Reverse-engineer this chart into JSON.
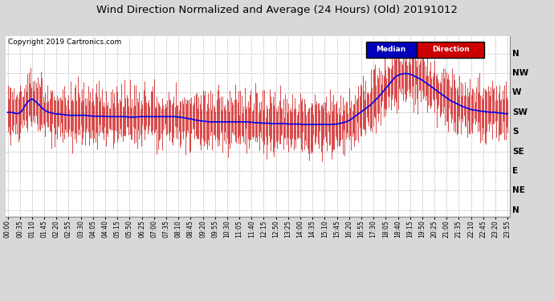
{
  "title": "Wind Direction Normalized and Average (24 Hours) (Old) 20191012",
  "copyright": "Copyright 2019 Cartronics.com",
  "background_color": "#d8d8d8",
  "plot_bg_color": "#ffffff",
  "grid_color": "#bbbbbb",
  "y_labels": [
    "N",
    "NW",
    "W",
    "SW",
    "S",
    "SE",
    "E",
    "NE",
    "N"
  ],
  "y_ticks": [
    360,
    315,
    270,
    225,
    180,
    135,
    90,
    45,
    0
  ],
  "y_lim": [
    -15,
    400
  ],
  "x_tick_labels": [
    "00:00",
    "00:35",
    "01:10",
    "01:45",
    "02:20",
    "02:55",
    "03:30",
    "04:05",
    "04:40",
    "05:15",
    "05:50",
    "06:25",
    "07:00",
    "07:35",
    "08:10",
    "08:45",
    "09:20",
    "09:55",
    "10:30",
    "11:05",
    "11:40",
    "12:15",
    "12:50",
    "13:25",
    "14:00",
    "14:35",
    "15:10",
    "15:45",
    "16:20",
    "16:55",
    "17:30",
    "18:05",
    "18:40",
    "19:15",
    "19:50",
    "20:25",
    "21:00",
    "21:35",
    "22:10",
    "22:45",
    "23:20",
    "23:55"
  ],
  "legend_median_bg": "#0000bb",
  "legend_direction_bg": "#cc0000",
  "legend_median_text": "Median",
  "legend_direction_text": "Direction",
  "median_line_color": "#0000ee",
  "bar_color": "#cc0000",
  "n_points": 480,
  "median_profile": [
    225,
    225,
    225,
    224,
    223,
    222,
    222,
    225,
    228,
    235,
    242,
    248,
    252,
    255,
    255,
    252,
    248,
    244,
    240,
    236,
    232,
    229,
    227,
    225,
    224,
    223,
    222,
    221,
    221,
    221,
    220,
    220,
    219,
    219,
    218,
    218,
    218,
    218,
    218,
    218,
    218,
    218,
    218,
    218,
    218,
    217,
    217,
    216,
    216,
    216,
    216,
    216,
    216,
    216,
    216,
    215,
    215,
    215,
    215,
    215,
    215,
    215,
    215,
    215,
    215,
    215,
    215,
    214,
    214,
    214,
    214,
    214,
    214,
    215,
    215,
    215,
    215,
    215,
    215,
    215,
    215,
    215,
    215,
    215,
    215,
    215,
    215,
    215,
    215,
    215,
    215,
    215,
    215,
    215,
    215,
    214,
    214,
    213,
    213,
    212,
    211,
    210,
    210,
    209,
    208,
    207,
    206,
    206,
    205,
    205,
    204,
    204,
    203,
    203,
    203,
    203,
    203,
    203,
    203,
    203,
    203,
    203,
    203,
    203,
    203,
    203,
    203,
    203,
    203,
    203,
    203,
    203,
    203,
    203,
    203,
    202,
    202,
    202,
    201,
    201,
    201,
    201,
    200,
    200,
    200,
    200,
    200,
    199,
    199,
    199,
    199,
    199,
    199,
    199,
    199,
    199,
    198,
    198,
    198,
    198,
    198,
    198,
    198,
    198,
    197,
    197,
    197,
    197,
    197,
    197,
    197,
    197,
    197,
    197,
    197,
    197,
    197,
    197,
    197,
    197,
    197,
    197,
    197,
    198,
    198,
    199,
    200,
    201,
    202,
    203,
    205,
    207,
    210,
    213,
    216,
    219,
    222,
    225,
    228,
    231,
    234,
    237,
    240,
    244,
    248,
    252,
    256,
    260,
    265,
    270,
    275,
    280,
    285,
    290,
    295,
    300,
    305,
    308,
    310,
    312,
    313,
    314,
    314,
    314,
    313,
    312,
    310,
    308,
    306,
    304,
    302,
    300,
    297,
    294,
    291,
    288,
    285,
    282,
    279,
    276,
    273,
    270,
    267,
    264,
    261,
    258,
    255,
    252,
    250,
    248,
    246,
    244,
    242,
    240,
    238,
    237,
    235,
    234,
    232,
    231,
    230,
    230,
    229,
    228,
    228,
    227,
    227,
    226,
    226,
    225,
    225,
    225,
    225,
    224,
    224,
    223,
    223,
    222,
    222,
    221
  ]
}
